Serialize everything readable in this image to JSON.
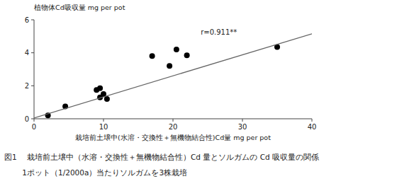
{
  "chart_data": {
    "type": "scatter",
    "x_label": "栽培前土壌中(水溶・交換性＋無機物結合性)Cd量  mg per pot",
    "y_label": "植物体Cd吸収量  mg per pot",
    "annotations": [
      "r=0.911**"
    ],
    "caption": [
      "図1　 栽培前土壌中（水溶・交換性＋無機物結合性）Cd 量とソルガムの Cd 吸収量の関係",
      "　　 1ポット（1/2000a）当たりソルガムを3株栽培"
    ],
    "series": [
      {
        "type": "scatter",
        "marker": "circle",
        "color": "#000000",
        "x": [
          2.0,
          4.5,
          9.0,
          9.5,
          9.5,
          10.0,
          10.5,
          17.0,
          19.5,
          20.5,
          22.0,
          35.0
        ],
        "values": [
          0.2,
          0.75,
          1.75,
          1.85,
          1.3,
          1.5,
          1.2,
          3.8,
          3.2,
          4.2,
          3.85,
          4.35
        ]
      },
      {
        "type": "line",
        "line_style": "solid",
        "color": "#666666",
        "x": [
          0.0,
          40.0
        ],
        "values": [
          0.05,
          5.15
        ]
      }
    ],
    "xlim": [
      0,
      40
    ],
    "ylim": [
      0,
      6
    ],
    "xticks": [
      0,
      10,
      20,
      30,
      40
    ],
    "yticks": [
      0,
      2,
      4,
      6
    ],
    "grid": false
  }
}
